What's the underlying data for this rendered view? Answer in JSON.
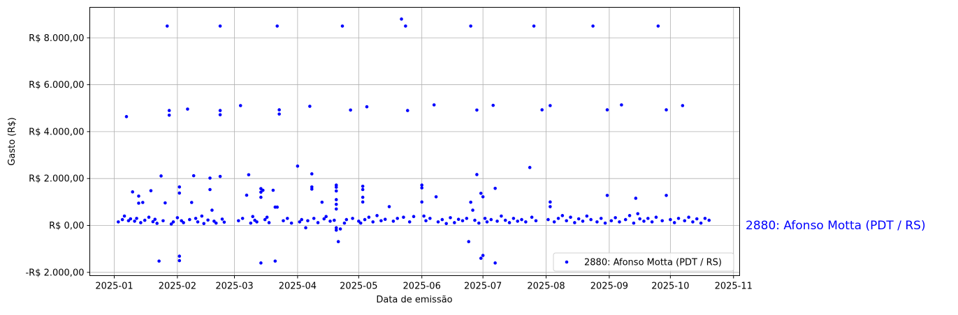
{
  "chart_data": {
    "type": "scatter",
    "title": "",
    "xlabel": "Data de emissão",
    "ylabel": "Gasto (R$)",
    "xlim": [
      "2024-12-20",
      "2025-11-04"
    ],
    "ylim": [
      -2140,
      9300
    ],
    "grid": true,
    "legend_placement": "lower right",
    "x_ticks": [
      "2025-01",
      "2025-02",
      "2025-03",
      "2025-04",
      "2025-05",
      "2025-06",
      "2025-07",
      "2025-08",
      "2025-09",
      "2025-10",
      "2025-11"
    ],
    "y_ticks": [
      -2000,
      0,
      2000,
      4000,
      6000,
      8000
    ],
    "y_tick_labels": [
      "-R$ 2.000,00",
      "R$ 0,00",
      "R$ 2.000,00",
      "R$ 4.000,00",
      "R$ 6.000,00",
      "R$ 8.000,00"
    ],
    "annotation": "2880: Afonso Motta (PDT / RS)",
    "series": [
      {
        "name": "2880: Afonso Motta (PDT / RS)",
        "color": "#0000ff",
        "points": [
          [
            "2025-01-03",
            150
          ],
          [
            "2025-01-05",
            250
          ],
          [
            "2025-01-06",
            400
          ],
          [
            "2025-01-07",
            4640
          ],
          [
            "2025-01-08",
            200
          ],
          [
            "2025-01-09",
            280
          ],
          [
            "2025-01-10",
            1430
          ],
          [
            "2025-01-11",
            180
          ],
          [
            "2025-01-12",
            300
          ],
          [
            "2025-01-13",
            1250
          ],
          [
            "2025-01-13",
            950
          ],
          [
            "2025-01-14",
            120
          ],
          [
            "2025-01-15",
            980
          ],
          [
            "2025-01-16",
            220
          ],
          [
            "2025-01-18",
            350
          ],
          [
            "2025-01-19",
            1480
          ],
          [
            "2025-01-20",
            160
          ],
          [
            "2025-01-21",
            260
          ],
          [
            "2025-01-22",
            90
          ],
          [
            "2025-01-23",
            -1520
          ],
          [
            "2025-01-24",
            2110
          ],
          [
            "2025-01-25",
            200
          ],
          [
            "2025-01-26",
            960
          ],
          [
            "2025-01-27",
            8500
          ],
          [
            "2025-01-28",
            4900
          ],
          [
            "2025-01-28",
            4700
          ],
          [
            "2025-01-29",
            60
          ],
          [
            "2025-01-30",
            150
          ],
          [
            "2025-02-01",
            330
          ],
          [
            "2025-02-02",
            1640
          ],
          [
            "2025-02-02",
            1380
          ],
          [
            "2025-02-02",
            -1310
          ],
          [
            "2025-02-02",
            -1500
          ],
          [
            "2025-02-03",
            200
          ],
          [
            "2025-02-04",
            120
          ],
          [
            "2025-02-06",
            4960
          ],
          [
            "2025-02-07",
            250
          ],
          [
            "2025-02-08",
            980
          ],
          [
            "2025-02-09",
            2120
          ],
          [
            "2025-02-10",
            300
          ],
          [
            "2025-02-11",
            150
          ],
          [
            "2025-02-13",
            400
          ],
          [
            "2025-02-14",
            80
          ],
          [
            "2025-02-16",
            230
          ],
          [
            "2025-02-17",
            2020
          ],
          [
            "2025-02-17",
            1530
          ],
          [
            "2025-02-18",
            650
          ],
          [
            "2025-02-19",
            180
          ],
          [
            "2025-02-20",
            100
          ],
          [
            "2025-02-22",
            8500
          ],
          [
            "2025-02-22",
            4900
          ],
          [
            "2025-02-22",
            4720
          ],
          [
            "2025-02-22",
            2090
          ],
          [
            "2025-02-23",
            270
          ],
          [
            "2025-02-24",
            140
          ],
          [
            "2025-03-03",
            200
          ],
          [
            "2025-03-04",
            5110
          ],
          [
            "2025-03-05",
            300
          ],
          [
            "2025-03-07",
            1290
          ],
          [
            "2025-03-08",
            2160
          ],
          [
            "2025-03-09",
            100
          ],
          [
            "2025-03-10",
            380
          ],
          [
            "2025-03-11",
            220
          ],
          [
            "2025-03-12",
            150
          ],
          [
            "2025-03-14",
            -1600
          ],
          [
            "2025-03-14",
            1570
          ],
          [
            "2025-03-14",
            1420
          ],
          [
            "2025-03-14",
            1200
          ],
          [
            "2025-03-15",
            1500
          ],
          [
            "2025-03-16",
            250
          ],
          [
            "2025-03-17",
            350
          ],
          [
            "2025-03-18",
            120
          ],
          [
            "2025-03-20",
            1500
          ],
          [
            "2025-03-21",
            780
          ],
          [
            "2025-03-21",
            -1520
          ],
          [
            "2025-03-22",
            8500
          ],
          [
            "2025-03-22",
            780
          ],
          [
            "2025-03-23",
            4930
          ],
          [
            "2025-03-23",
            4750
          ],
          [
            "2025-03-25",
            200
          ],
          [
            "2025-03-27",
            300
          ],
          [
            "2025-03-29",
            100
          ],
          [
            "2025-04-01",
            2530
          ],
          [
            "2025-04-02",
            150
          ],
          [
            "2025-04-03",
            250
          ],
          [
            "2025-04-05",
            -100
          ],
          [
            "2025-04-06",
            200
          ],
          [
            "2025-04-07",
            5080
          ],
          [
            "2025-04-08",
            2200
          ],
          [
            "2025-04-08",
            1640
          ],
          [
            "2025-04-08",
            1550
          ],
          [
            "2025-04-09",
            300
          ],
          [
            "2025-04-11",
            120
          ],
          [
            "2025-04-13",
            990
          ],
          [
            "2025-04-14",
            280
          ],
          [
            "2025-04-15",
            380
          ],
          [
            "2025-04-17",
            180
          ],
          [
            "2025-04-19",
            220
          ],
          [
            "2025-04-20",
            1720
          ],
          [
            "2025-04-20",
            1630
          ],
          [
            "2025-04-20",
            1470
          ],
          [
            "2025-04-20",
            1100
          ],
          [
            "2025-04-20",
            900
          ],
          [
            "2025-04-20",
            700
          ],
          [
            "2025-04-20",
            -100
          ],
          [
            "2025-04-20",
            -200
          ],
          [
            "2025-04-21",
            -690
          ],
          [
            "2025-04-22",
            -150
          ],
          [
            "2025-04-23",
            8500
          ],
          [
            "2025-04-24",
            100
          ],
          [
            "2025-04-25",
            250
          ],
          [
            "2025-04-27",
            4920
          ],
          [
            "2025-04-28",
            300
          ],
          [
            "2025-05-01",
            180
          ],
          [
            "2025-05-02",
            100
          ],
          [
            "2025-05-03",
            1670
          ],
          [
            "2025-05-03",
            1530
          ],
          [
            "2025-05-03",
            1200
          ],
          [
            "2025-05-03",
            1000
          ],
          [
            "2025-05-04",
            250
          ],
          [
            "2025-05-05",
            5060
          ],
          [
            "2025-05-06",
            350
          ],
          [
            "2025-05-08",
            150
          ],
          [
            "2025-05-10",
            420
          ],
          [
            "2025-05-12",
            200
          ],
          [
            "2025-05-14",
            260
          ],
          [
            "2025-05-16",
            800
          ],
          [
            "2025-05-18",
            180
          ],
          [
            "2025-05-20",
            300
          ],
          [
            "2025-05-22",
            8800
          ],
          [
            "2025-05-23",
            350
          ],
          [
            "2025-05-24",
            8500
          ],
          [
            "2025-05-25",
            4900
          ],
          [
            "2025-05-26",
            150
          ],
          [
            "2025-05-28",
            380
          ],
          [
            "2025-06-01",
            1720
          ],
          [
            "2025-06-01",
            1600
          ],
          [
            "2025-06-01",
            1000
          ],
          [
            "2025-06-02",
            400
          ],
          [
            "2025-06-03",
            200
          ],
          [
            "2025-06-05",
            300
          ],
          [
            "2025-06-07",
            5140
          ],
          [
            "2025-06-08",
            1220
          ],
          [
            "2025-06-09",
            150
          ],
          [
            "2025-06-11",
            250
          ],
          [
            "2025-06-13",
            80
          ],
          [
            "2025-06-15",
            330
          ],
          [
            "2025-06-17",
            120
          ],
          [
            "2025-06-19",
            260
          ],
          [
            "2025-06-21",
            200
          ],
          [
            "2025-06-23",
            300
          ],
          [
            "2025-06-24",
            -690
          ],
          [
            "2025-06-25",
            8500
          ],
          [
            "2025-06-25",
            990
          ],
          [
            "2025-06-26",
            650
          ],
          [
            "2025-06-27",
            220
          ],
          [
            "2025-06-28",
            4920
          ],
          [
            "2025-06-28",
            2170
          ],
          [
            "2025-06-29",
            100
          ],
          [
            "2025-06-30",
            -1400
          ],
          [
            "2025-06-30",
            1370
          ],
          [
            "2025-07-01",
            -1280
          ],
          [
            "2025-07-01",
            1220
          ],
          [
            "2025-07-02",
            300
          ],
          [
            "2025-07-03",
            150
          ],
          [
            "2025-07-05",
            250
          ],
          [
            "2025-07-06",
            5120
          ],
          [
            "2025-07-07",
            1580
          ],
          [
            "2025-07-07",
            -1600
          ],
          [
            "2025-07-08",
            180
          ],
          [
            "2025-07-10",
            400
          ],
          [
            "2025-07-12",
            220
          ],
          [
            "2025-07-14",
            120
          ],
          [
            "2025-07-16",
            300
          ],
          [
            "2025-07-18",
            180
          ],
          [
            "2025-07-20",
            250
          ],
          [
            "2025-07-22",
            150
          ],
          [
            "2025-07-24",
            2470
          ],
          [
            "2025-07-25",
            350
          ],
          [
            "2025-07-26",
            8500
          ],
          [
            "2025-07-27",
            200
          ],
          [
            "2025-07-30",
            4930
          ],
          [
            "2025-08-02",
            250
          ],
          [
            "2025-08-03",
            5110
          ],
          [
            "2025-08-03",
            1000
          ],
          [
            "2025-08-03",
            800
          ],
          [
            "2025-08-05",
            150
          ],
          [
            "2025-08-07",
            300
          ],
          [
            "2025-08-09",
            420
          ],
          [
            "2025-08-11",
            200
          ],
          [
            "2025-08-13",
            350
          ],
          [
            "2025-08-15",
            120
          ],
          [
            "2025-08-17",
            280
          ],
          [
            "2025-08-19",
            180
          ],
          [
            "2025-08-21",
            400
          ],
          [
            "2025-08-23",
            250
          ],
          [
            "2025-08-24",
            8500
          ],
          [
            "2025-08-26",
            150
          ],
          [
            "2025-08-28",
            300
          ],
          [
            "2025-08-30",
            100
          ],
          [
            "2025-08-31",
            4930
          ],
          [
            "2025-08-31",
            1280
          ],
          [
            "2025-09-02",
            200
          ],
          [
            "2025-09-04",
            330
          ],
          [
            "2025-09-06",
            150
          ],
          [
            "2025-09-07",
            5140
          ],
          [
            "2025-09-09",
            250
          ],
          [
            "2025-09-11",
            420
          ],
          [
            "2025-09-13",
            100
          ],
          [
            "2025-09-14",
            1160
          ],
          [
            "2025-09-15",
            500
          ],
          [
            "2025-09-16",
            280
          ],
          [
            "2025-09-18",
            180
          ],
          [
            "2025-09-20",
            300
          ],
          [
            "2025-09-22",
            150
          ],
          [
            "2025-09-24",
            350
          ],
          [
            "2025-09-25",
            8500
          ],
          [
            "2025-09-27",
            200
          ],
          [
            "2025-09-29",
            4930
          ],
          [
            "2025-09-29",
            1280
          ],
          [
            "2025-10-01",
            250
          ],
          [
            "2025-10-03",
            120
          ],
          [
            "2025-10-05",
            300
          ],
          [
            "2025-10-07",
            5110
          ],
          [
            "2025-10-08",
            200
          ],
          [
            "2025-10-10",
            350
          ],
          [
            "2025-10-12",
            150
          ],
          [
            "2025-10-14",
            280
          ],
          [
            "2025-10-16",
            100
          ],
          [
            "2025-10-18",
            300
          ],
          [
            "2025-10-20",
            220
          ]
        ]
      }
    ]
  }
}
